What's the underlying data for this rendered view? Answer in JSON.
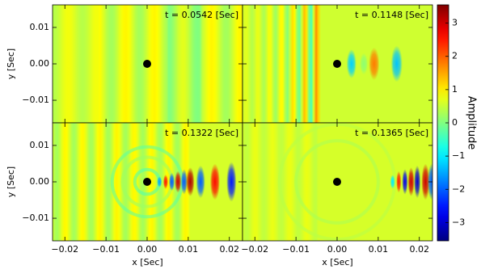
{
  "chart_data": [
    {
      "type": "heatmap",
      "annotation": "t = 0.0542 [Sec]",
      "ylabel": "y [Sec]",
      "xlim": [
        -0.023,
        0.0232
      ],
      "ylim": [
        -0.0162,
        0.0162
      ],
      "xticks": [
        -0.02,
        -0.01,
        0,
        0.01,
        0.02
      ],
      "yticks": [
        {
          "value": -0.01,
          "label": "−0.01"
        },
        {
          "value": 0,
          "label": "0.00"
        },
        {
          "value": 0.01,
          "label": "0.01"
        }
      ],
      "source": {
        "x": 0,
        "y": 0
      }
    },
    {
      "type": "heatmap",
      "annotation": "t = 0.1148 [Sec]",
      "xlim": [
        -0.023,
        0.0232
      ],
      "ylim": [
        -0.0162,
        0.0162
      ],
      "xticks": [
        -0.02,
        -0.01,
        0,
        0.01,
        0.02
      ],
      "yticks": [
        -0.01,
        0,
        0.01
      ],
      "source": {
        "x": 0,
        "y": 0
      }
    },
    {
      "type": "heatmap",
      "annotation": "t = 0.1322 [Sec]",
      "xlabel": "x [Sec]",
      "ylabel": "y [Sec]",
      "xlim": [
        -0.023,
        0.0232
      ],
      "ylim": [
        -0.0162,
        0.0162
      ],
      "xticks": [
        {
          "value": -0.02,
          "label": "−0.02"
        },
        {
          "value": -0.01,
          "label": "−0.01"
        },
        {
          "value": 0,
          "label": "0.00"
        },
        {
          "value": 0.01,
          "label": "0.01"
        },
        {
          "value": 0.02,
          "label": "0.02"
        }
      ],
      "yticks": [
        {
          "value": -0.01,
          "label": "−0.01"
        },
        {
          "value": 0,
          "label": "0.00"
        },
        {
          "value": 0.01,
          "label": "0.01"
        }
      ],
      "source": {
        "x": 0,
        "y": 0
      }
    },
    {
      "type": "heatmap",
      "annotation": "t = 0.1365 [Sec]",
      "xlabel": "x [Sec]",
      "xlim": [
        -0.023,
        0.0232
      ],
      "ylim": [
        -0.0162,
        0.0162
      ],
      "xticks": [
        {
          "value": -0.02,
          "label": "−0.02"
        },
        {
          "value": -0.01,
          "label": "−0.01"
        },
        {
          "value": 0,
          "label": "0.00"
        },
        {
          "value": 0.01,
          "label": "0.01"
        },
        {
          "value": 0.02,
          "label": "0.02"
        }
      ],
      "yticks": [
        -0.01,
        0,
        0.01
      ],
      "source": {
        "x": 0,
        "y": 0
      }
    },
    {
      "type": "colorbar",
      "label": "Amplitude",
      "colormap": "jet",
      "clim": [
        -3.55,
        3.55
      ],
      "ticks": [
        {
          "value": -3,
          "label": "−3"
        },
        {
          "value": -2,
          "label": "−2"
        },
        {
          "value": -1,
          "label": "−1"
        },
        0,
        1,
        2,
        3
      ]
    }
  ]
}
